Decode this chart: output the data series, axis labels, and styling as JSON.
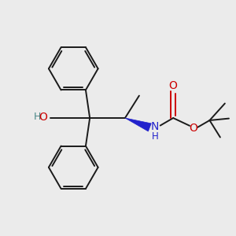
{
  "background_color": "#ebebeb",
  "bond_color": "#1a1a1a",
  "oxygen_color": "#cc0000",
  "nitrogen_color": "#2222cc",
  "hydroxyl_color": "#4a8888",
  "figsize": [
    3.0,
    3.0
  ],
  "dpi": 100,
  "xlim": [
    0,
    10
  ],
  "ylim": [
    0,
    10
  ]
}
